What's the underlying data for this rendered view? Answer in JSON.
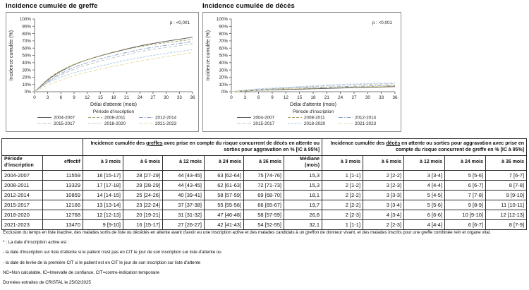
{
  "chart_data": [
    {
      "type": "line",
      "title": "Incidence cumulée de greffe",
      "xlabel": "Délai d'attente (mois)",
      "ylabel": "Incidence cumulée (%)",
      "annotation": "p : <0,001",
      "legend_title": "Période d'inscription",
      "legend_position": "bottom",
      "grid": false,
      "xlim": [
        0,
        36
      ],
      "ylim": [
        0,
        100
      ],
      "xtick_step": 3,
      "ytick_step": 10,
      "x": [
        0,
        3,
        6,
        12,
        24,
        36
      ],
      "series": [
        {
          "name": "2004-2007",
          "values": [
            0,
            16,
            28,
            44,
            63,
            75
          ],
          "color": "#5f5f5f",
          "dash": ""
        },
        {
          "name": "2008-2011",
          "values": [
            0,
            17,
            29,
            44,
            62,
            72
          ],
          "color": "#aaa268",
          "dash": "4,2"
        },
        {
          "name": "2012-2014",
          "values": [
            0,
            14,
            25,
            40,
            58,
            69
          ],
          "color": "#8ba3cc",
          "dash": "6,2,1.5,2"
        },
        {
          "name": "2015-2017",
          "values": [
            0,
            13,
            23,
            37,
            55,
            66
          ],
          "color": "#c3c3c3",
          "dash": "5,2.5"
        },
        {
          "name": "2018-2020",
          "values": [
            0,
            12,
            20,
            31,
            47,
            58
          ],
          "color": "#abcbe3",
          "dash": "3,1.8"
        },
        {
          "name": "2021-2023",
          "values": [
            0,
            9,
            16,
            27,
            42,
            54
          ],
          "color": "#e7dda3",
          "dash": "5,2.5"
        }
      ]
    },
    {
      "type": "line",
      "title": "Incidence cumulée de décès",
      "xlabel": "Délai d'attente (mois)",
      "ylabel": "Incidence cumulée (%)",
      "annotation": "p : <0,001",
      "legend_title": "Période d'inscription",
      "legend_position": "bottom",
      "grid": false,
      "xlim": [
        0,
        36
      ],
      "ylim": [
        0,
        100
      ],
      "xtick_step": 3,
      "ytick_step": 10,
      "x": [
        0,
        3,
        6,
        12,
        24,
        36
      ],
      "series": [
        {
          "name": "2004-2007",
          "values": [
            0,
            1,
            2,
            3,
            5,
            7
          ],
          "color": "#5f5f5f",
          "dash": ""
        },
        {
          "name": "2008-2011",
          "values": [
            0,
            2,
            3,
            4,
            6,
            8
          ],
          "color": "#aaa268",
          "dash": "4,2"
        },
        {
          "name": "2012-2014",
          "values": [
            0,
            2,
            3,
            5,
            7,
            9
          ],
          "color": "#8ba3cc",
          "dash": "6,2,1.5,2"
        },
        {
          "name": "2015-2017",
          "values": [
            0,
            2,
            3,
            5,
            9,
            11
          ],
          "color": "#c3c3c3",
          "dash": "5,2.5"
        },
        {
          "name": "2018-2020",
          "values": [
            0,
            2,
            4,
            6,
            10,
            12
          ],
          "color": "#abcbe3",
          "dash": "3,1.8"
        },
        {
          "name": "2021-2023",
          "values": [
            0,
            1,
            2,
            4,
            6,
            8
          ],
          "color": "#e7dda3",
          "dash": "5,2.5"
        }
      ]
    }
  ],
  "table": {
    "group_headers": [
      {
        "prefix": "Incidence cumulée des ",
        "underlined": "greffes",
        "suffix": " avec prise en compte du risque concurrent de décès en attente ou sorties pour aggravation en % [IC à 95%]"
      },
      {
        "prefix": "Incidence cumulée des ",
        "underlined": "décès",
        "suffix": " en attente ou sorties pour aggravation avec prise en compte du risque concurrent de greffe en % [IC à 95%]"
      }
    ],
    "columns": [
      "Période d'inscription",
      "effectif",
      "à 3 mois",
      "à 6 mois",
      "à 12 mois",
      "à 24 mois",
      "à 36 mois",
      "Médiane (mois)",
      "à 3 mois",
      "à 6 mois",
      "à 12 mois",
      "à 24 mois",
      "à 36 mois"
    ],
    "rows": [
      [
        "2004-2007",
        "11559",
        "16 [15-17]",
        "28 [27-29]",
        "44 [43-45]",
        "63 [62-64]",
        "75 [74-76]",
        "15,3",
        "1 [1-1]",
        "2 [2-2]",
        "3 [3-4]",
        "5 [5-6]",
        "7 [6-7]"
      ],
      [
        "2008-2011",
        "13329",
        "17 [17-18]",
        "29 [28-29]",
        "44 [43-45]",
        "62 [61-63]",
        "72 [71-73]",
        "15,3",
        "2 [1-2]",
        "3 [2-3]",
        "4 [4-4]",
        "6 [6-7]",
        "8 [7-8]"
      ],
      [
        "2012-2014",
        "10859",
        "14 [14-15]",
        "25 [24-26]",
        "40 [39-41]",
        "58 [57-59]",
        "69 [68-70]",
        "18,1",
        "2 [2-2]",
        "3 [3-3]",
        "5 [4-5]",
        "7 [7-8]",
        "9 [9-10]"
      ],
      [
        "2015-2017",
        "12166",
        "13 [13-14]",
        "23 [22-24]",
        "37 [37-38]",
        "55 [55-56]",
        "66 [65-67]",
        "19,7",
        "2 [2-2]",
        "3 [3-4]",
        "5 [5-6]",
        "9 [8-9]",
        "11 [10-11]"
      ],
      [
        "2018-2020",
        "12768",
        "12 [12-13]",
        "20 [19-21]",
        "31 [31-32]",
        "47 [46-48]",
        "58 [57-59]",
        "26,8",
        "2 [2-3]",
        "4 [3-4]",
        "6 [6-6]",
        "10 [9-10]",
        "12 [12-13]"
      ],
      [
        "2021-2023",
        "13470",
        "9 [9-10]",
        "16 [15-17]",
        "27 [26-27]",
        "42 [41-43]",
        "54 [52-55]",
        "32,1",
        "1 [1-1]",
        "2 [2-3]",
        "4 [4-4]",
        "6 [6-7]",
        "8 [7-9]"
      ]
    ]
  },
  "footnotes": [
    "Exclusion du temps en liste inactive, des malades sortis de liste ou décédés en attente avant d'avoir eu une inscription active et des malades candidats à un greffon de donneur vivant, et des malades inscrits pour une greffe combinée rein et organe vital.",
    "* : La date d'inscription active est :",
    "- la date d'inscription sur liste d'attente si le patient n'est pas en CIT le jour de son inscription sur liste d'attente ou",
    "- la date de levée de la première CIT si le patient est en CIT le jour de son inscription sur liste d'attente",
    "NC=Non calculable, IC=Intervalle de confiance, CIT=contre-indication temporaire",
    "Données extraites de CRISTAL le 25/02/2025"
  ]
}
